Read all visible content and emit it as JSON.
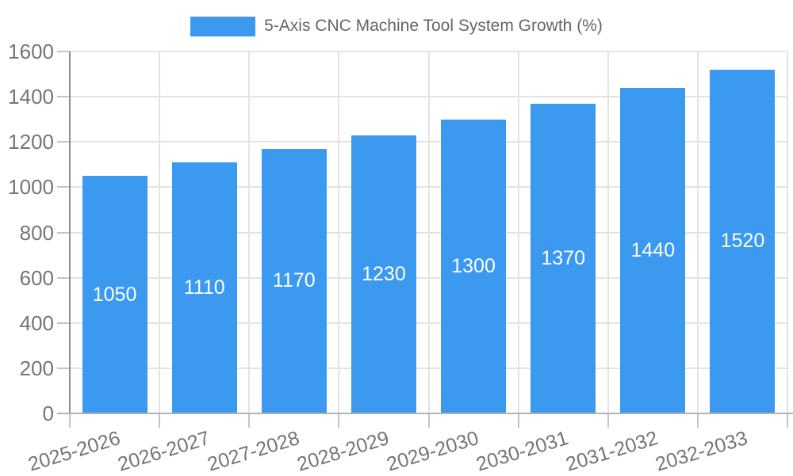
{
  "chart_data": {
    "type": "bar",
    "title": "",
    "xlabel": "",
    "ylabel": "",
    "categories": [
      "2025-2026",
      "2026-2027",
      "2027-2028",
      "2028-2029",
      "2029-2030",
      "2030-2031",
      "2031-2032",
      "2032-2033"
    ],
    "series": [
      {
        "name": "5-Axis CNC Machine Tool System Growth (%)",
        "values": [
          1050,
          1110,
          1170,
          1230,
          1300,
          1370,
          1440,
          1520
        ]
      }
    ],
    "value_labels": [
      "1050",
      "1110",
      "1170",
      "1230",
      "1300",
      "1370",
      "1440",
      "1520"
    ],
    "ylim": [
      0,
      1600
    ],
    "yticks": [
      0,
      200,
      400,
      600,
      800,
      1000,
      1200,
      1400,
      1600
    ],
    "grid": true,
    "legend_position": "top",
    "value_label_placement": "inside-center",
    "colors": {
      "bar": "#3b9aef",
      "bar_value_text": "#ffffff",
      "gridline": "#e3e3e3",
      "y_axis_line": "#8f8f8f",
      "x_axis_line": "#b3b3b3",
      "tick_mark": "#c4c4c4",
      "tick_label": "#757575",
      "legend_text": "#666666",
      "background": "#ffffff"
    }
  }
}
